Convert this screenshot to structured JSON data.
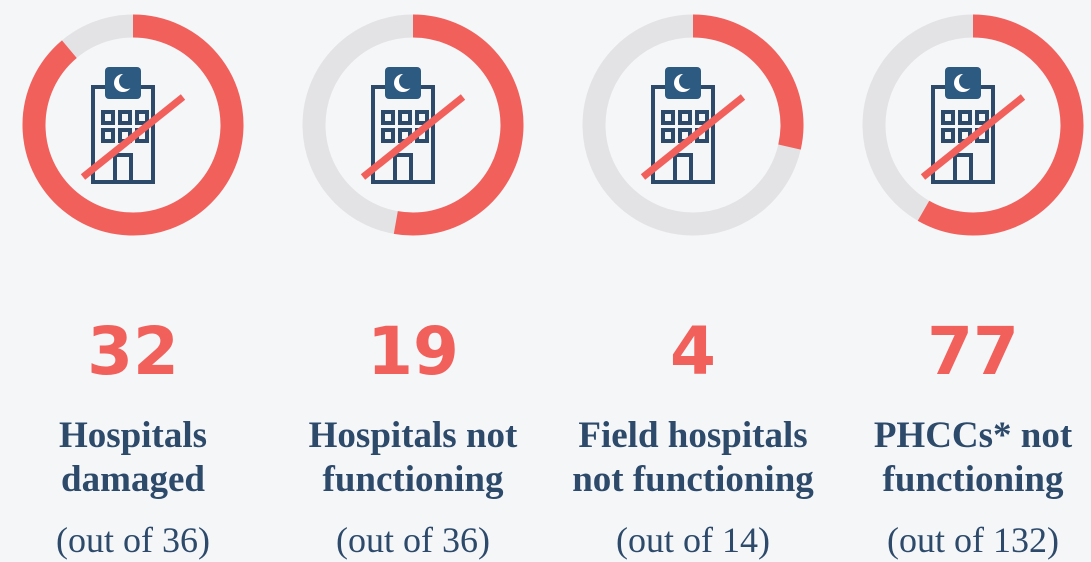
{
  "chart_data": [
    {
      "type": "donut",
      "value": 32,
      "total": 36,
      "label": [
        "Hospitals",
        "damaged"
      ],
      "total_label": "(out of 36)",
      "color": "#f2605c",
      "track_color": "#e3e3e5"
    },
    {
      "type": "donut",
      "value": 19,
      "total": 36,
      "label": [
        "Hospitals not",
        "functioning"
      ],
      "total_label": "(out of 36)",
      "color": "#f2605c",
      "track_color": "#e3e3e5"
    },
    {
      "type": "donut",
      "value": 4,
      "total": 14,
      "label": [
        "Field hospitals",
        "not functioning"
      ],
      "total_label": "(out of 14)",
      "color": "#f2605c",
      "track_color": "#e3e3e5"
    },
    {
      "type": "donut",
      "value": 77,
      "total": 132,
      "label": [
        "PHCCs* not",
        "functioning"
      ],
      "total_label": "(out of 132)",
      "color": "#f2605c",
      "track_color": "#e3e3e5"
    }
  ]
}
